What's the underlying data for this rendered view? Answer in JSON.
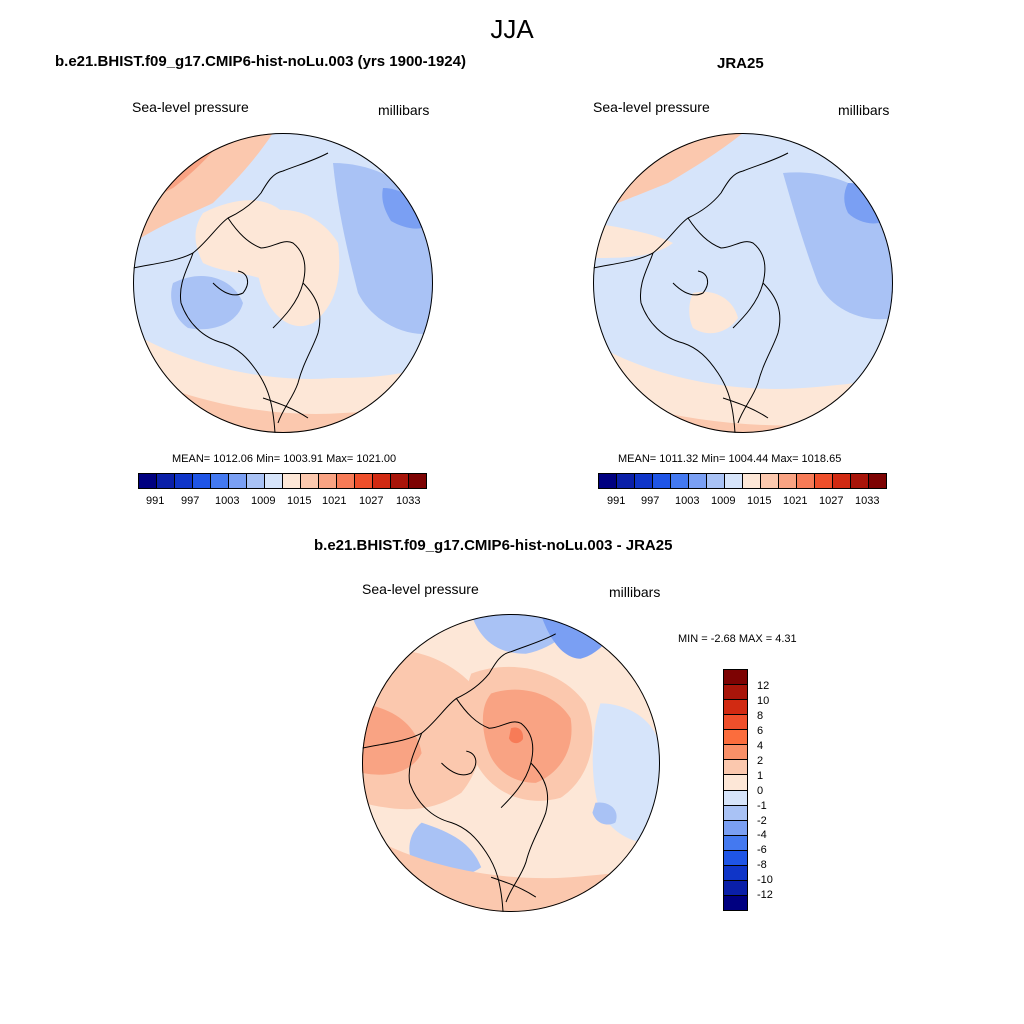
{
  "page": {
    "title": "JJA"
  },
  "panels": [
    {
      "title": "b.e21.BHIST.f09_g17.CMIP6-hist-noLu.003 (yrs 1900-1924)",
      "variable": "Sea-level pressure",
      "units": "millibars",
      "stats": "MEAN= 1012.06  Min= 1003.91  Max= 1021.00",
      "mean": 1012.06,
      "min": 1003.91,
      "max": 1021.0
    },
    {
      "title": "JRA25",
      "variable": "Sea-level pressure",
      "units": "millibars",
      "stats": "MEAN= 1011.32  Min= 1004.44  Max= 1018.65",
      "mean": 1011.32,
      "min": 1004.44,
      "max": 1018.65
    },
    {
      "title": "b.e21.BHIST.f09_g17.CMIP6-hist-noLu.003 - JRA25",
      "variable": "Sea-level pressure",
      "units": "millibars",
      "stats": "MIN =  -2.68 MAX =   4.31",
      "min": -2.68,
      "max": 4.31
    }
  ],
  "colorbar_abs": {
    "tick_labels": [
      "991",
      "997",
      "1003",
      "1009",
      "1015",
      "1021",
      "1027",
      "1033"
    ],
    "colors": [
      "#000080",
      "#0a1fa8",
      "#0f35c8",
      "#1f55e6",
      "#4479f0",
      "#7a9ff3",
      "#a9c2f5",
      "#d6e4fa",
      "#fde7d7",
      "#fbc8ae",
      "#f9a383",
      "#f77b57",
      "#ef4f2b",
      "#d12a12",
      "#a8150a",
      "#7d0303"
    ]
  },
  "colorbar_diff": {
    "tick_labels": [
      "12",
      "10",
      "8",
      "6",
      "4",
      "2",
      "1",
      "0",
      "-1",
      "-2",
      "-4",
      "-6",
      "-8",
      "-10",
      "-12"
    ],
    "colors": [
      "#7d0303",
      "#a8150a",
      "#d12a12",
      "#ef4f2b",
      "#fb6d3d",
      "#f99068",
      "#fbc8ae",
      "#fde7d7",
      "#d6e4fa",
      "#a9c2f5",
      "#7a9ff3",
      "#4479f0",
      "#1f55e6",
      "#0f35c8",
      "#0a1fa8",
      "#000080"
    ]
  }
}
